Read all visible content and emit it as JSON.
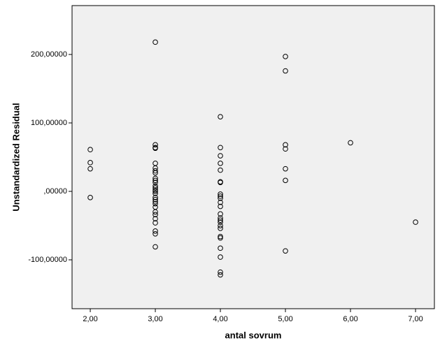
{
  "chart_data": {
    "type": "scatter",
    "x_label": "antal sovrum",
    "y_label": "Unstandardized Residual",
    "color": "#000000",
    "background": "#f0f0f0",
    "xlim": [
      1.72,
      7.29
    ],
    "ylim": [
      -171.4,
      271.4
    ],
    "xticks": [
      {
        "value": 2,
        "label": "2,00"
      },
      {
        "value": 3,
        "label": "3,00"
      },
      {
        "value": 4,
        "label": "4,00"
      },
      {
        "value": 5,
        "label": "5,00"
      },
      {
        "value": 6,
        "label": "6,00"
      },
      {
        "value": 7,
        "label": "7,00"
      }
    ],
    "yticks": [
      {
        "value": -100,
        "label": "-100,00000"
      },
      {
        "value": 0,
        "label": ",00000"
      },
      {
        "value": 100,
        "label": "100,00000"
      },
      {
        "value": 200,
        "label": "200,00000"
      }
    ],
    "x": [
      2,
      2,
      2,
      2,
      3,
      3,
      3,
      3,
      3,
      3,
      3,
      3,
      3,
      3,
      3,
      3,
      3,
      3,
      3,
      3,
      3,
      3,
      3,
      3,
      3,
      3,
      3,
      3,
      3,
      3,
      3,
      3,
      4,
      4,
      4,
      4,
      4,
      4,
      4,
      4,
      4,
      4,
      4,
      4,
      4,
      4,
      4,
      4,
      4,
      4,
      4,
      4,
      4,
      4,
      4,
      4,
      5,
      5,
      5,
      5,
      5,
      5,
      5,
      6,
      7
    ],
    "values": [
      61,
      42,
      33,
      -9,
      218,
      68,
      64,
      63,
      41,
      34,
      30,
      27,
      19,
      16,
      13,
      8,
      5,
      2,
      0,
      -3,
      -9,
      -12,
      -15,
      -18,
      -23,
      -30,
      -34,
      -40,
      -46,
      -58,
      -62,
      -81,
      109,
      64,
      52,
      41,
      31,
      14,
      13,
      -4,
      -7,
      -10,
      -16,
      -22,
      -33,
      -39,
      -42,
      -45,
      -50,
      -54,
      -66,
      -68,
      -83,
      -96,
      -118,
      -122,
      197,
      176,
      68,
      62,
      33,
      16,
      -87,
      71,
      -45
    ]
  }
}
